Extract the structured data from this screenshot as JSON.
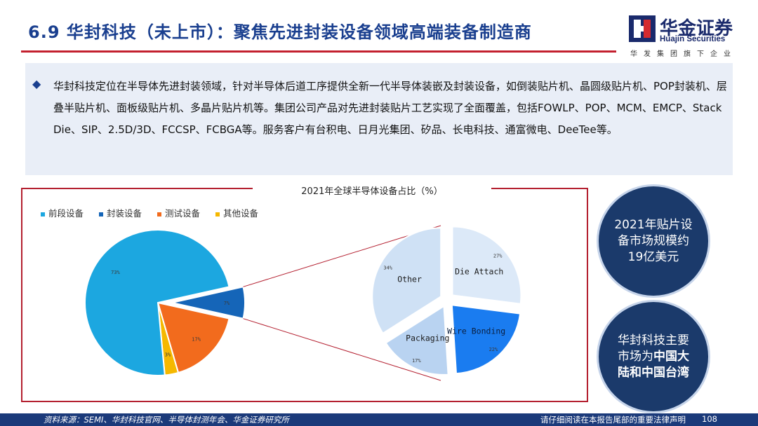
{
  "header": {
    "title": "6.9 华封科技（未上市）：聚焦先进封装设备领域高端装备制造商",
    "logo_cn": "华金证券",
    "logo_en": "Huajin Securities",
    "logo_tagline": "华发集团旗下企业"
  },
  "intro": {
    "text": "华封科技定位在半导体先进封装领域，针对半导体后道工序提供全新一代半导体装嵌及封装设备，如倒装贴片机、晶圆级贴片机、POP封装机、层叠半贴片机、面板级贴片机、多晶片贴片机等。集团公司产品对先进封装贴片工艺实现了全面覆盖，包括FOWLP、POP、MCM、EMCP、Stack Die、SIP、2.5D/3D、FCCSP、FCBGA等。服务客户有台积电、日月光集团、矽品、长电科技、通富微电、DeeTee等。"
  },
  "chart_data": [
    {
      "type": "pie",
      "title": "2021年全球半导体设备占比（%）",
      "legend_position": "top-left",
      "categories": [
        "前段设备",
        "封装设备",
        "测试设备",
        "其他设备"
      ],
      "values": [
        73,
        7,
        17,
        3
      ],
      "labels": [
        "73%",
        "7%",
        "17%",
        "3%"
      ],
      "colors": [
        "#1ca7e0",
        "#1565b8",
        "#f26b1d",
        "#f5b800"
      ],
      "exploded": "封装设备"
    },
    {
      "type": "pie",
      "categories": [
        "Die Attach",
        "Wire Bonding",
        "Packaging",
        "Other"
      ],
      "values": [
        27,
        22,
        17,
        34
      ],
      "labels": [
        "27%",
        "22%",
        "17%",
        "34%"
      ],
      "colors": [
        "#dce9f8",
        "#1a7cf0",
        "#b9d3f1",
        "#cfe1f5"
      ],
      "exploded": "all"
    }
  ],
  "callouts": {
    "market_size": "2021年贴片设备市场规模约19亿美元",
    "market_prefix": "华封科技主要市场为",
    "market_highlight": "中国大陆和中国台湾"
  },
  "footer": {
    "source": "资料来源：SEMI、华封科技官网、半导体封测年会、华金证券研究所",
    "disclaimer": "请仔细阅读在本报告尾部的重要法律声明",
    "page": "108"
  },
  "colors": {
    "title_blue": "#1a3f8f",
    "accent_red": "#c3202e",
    "footer_navy": "#1b3a7a",
    "circle_navy": "#1b3a6b"
  }
}
